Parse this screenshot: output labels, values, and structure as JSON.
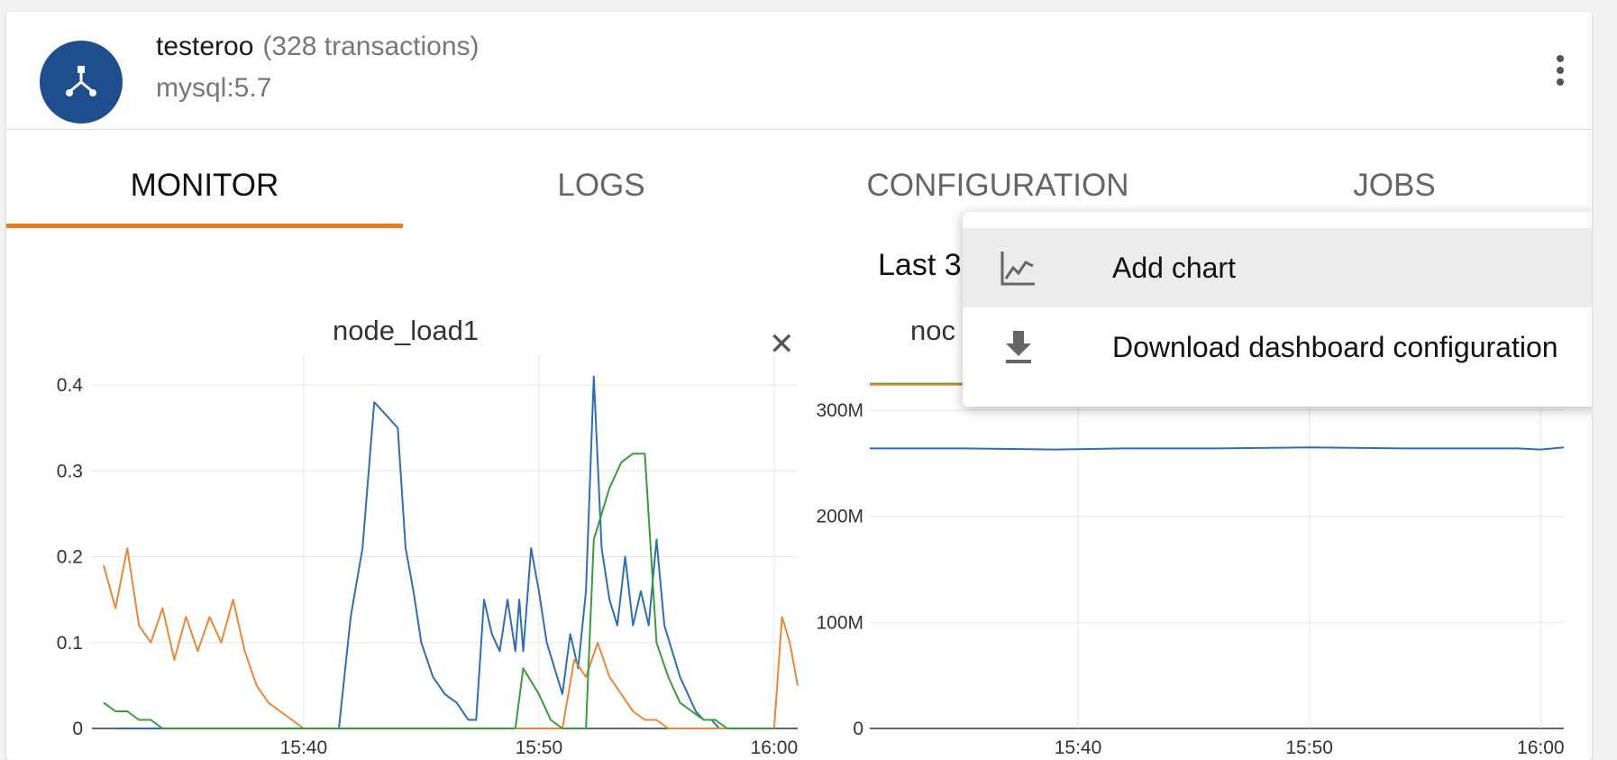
{
  "app": {
    "name": "testeroo",
    "transactions": "(328 transactions)",
    "subtitle": "mysql:5.7",
    "avatar_icon": "fork-icon",
    "accent_color": "#e67b20",
    "avatar_color": "#1f4e8f"
  },
  "tabs": [
    {
      "label": "MONITOR",
      "active": true
    },
    {
      "label": "LOGS",
      "active": false
    },
    {
      "label": "CONFIGURATION",
      "active": false
    },
    {
      "label": "JOBS",
      "active": false
    }
  ],
  "range_label": "Last 3",
  "menu": {
    "items": [
      {
        "label": "Add chart",
        "icon": "chart-icon",
        "highlighted": true
      },
      {
        "label": "Download dashboard configuration",
        "icon": "download-icon",
        "highlighted": false
      }
    ]
  },
  "chart_data": [
    {
      "type": "line",
      "title": "node_load1",
      "xticks": [
        "15:40",
        "15:50",
        "16:00"
      ],
      "ylim": [
        0,
        0.42
      ],
      "yticks": [
        "0",
        "0.1",
        "0.2",
        "0.3",
        "0.4"
      ],
      "grid": true,
      "series": [
        {
          "color": "#2f6faf",
          "x": [
            "15:32",
            "15:33",
            "15:34",
            "15:35",
            "15:36",
            "15:37",
            "15:38",
            "15:39",
            "15:40",
            "15:41",
            "15:41:30",
            "15:42",
            "15:42:30",
            "15:43",
            "15:43:20",
            "15:43:40",
            "15:44",
            "15:44:20",
            "15:44:40",
            "15:45",
            "15:45:30",
            "15:46",
            "15:46:30",
            "15:47",
            "15:47:20",
            "15:47:40",
            "15:48",
            "15:48:20",
            "15:48:40",
            "15:49",
            "15:49:10",
            "15:49:20",
            "15:49:30",
            "15:49:40",
            "15:50",
            "15:50:20",
            "15:50:40",
            "15:51",
            "15:51:20",
            "15:51:40",
            "15:52",
            "15:52:20",
            "15:52:40",
            "15:53",
            "15:53:20",
            "15:53:40",
            "15:54",
            "15:54:20",
            "15:54:40",
            "15:55",
            "15:55:20",
            "15:55:40",
            "15:56",
            "15:56:20",
            "15:56:40",
            "15:57",
            "15:57:20",
            "15:57:40",
            "15:58",
            "15:58:20",
            "15:58:40",
            "15:59",
            "15:59:20",
            "15:59:40",
            "16:00"
          ],
          "y": [
            0,
            0,
            0,
            0,
            0,
            0,
            0,
            0,
            0,
            0,
            0,
            0.13,
            0.21,
            0.38,
            0.37,
            0.36,
            0.35,
            0.21,
            0.16,
            0.1,
            0.06,
            0.04,
            0.03,
            0.01,
            0.01,
            0.15,
            0.11,
            0.09,
            0.15,
            0.09,
            0.15,
            0.09,
            0.15,
            0.21,
            0.16,
            0.1,
            0.07,
            0.04,
            0.11,
            0.07,
            0.16,
            0.41,
            0.21,
            0.15,
            0.12,
            0.2,
            0.12,
            0.16,
            0.12,
            0.22,
            0.12,
            0.09,
            0.06,
            0.04,
            0.02,
            0.01,
            0.01,
            0,
            0,
            0,
            0,
            0,
            0,
            0,
            0
          ]
        },
        {
          "color": "#e8883a",
          "x": [
            "15:31:30",
            "15:32",
            "15:32:30",
            "15:33",
            "15:33:30",
            "15:34",
            "15:34:30",
            "15:35",
            "15:35:30",
            "15:36",
            "15:36:30",
            "15:37",
            "15:37:30",
            "15:38",
            "15:38:30",
            "15:39",
            "15:39:30",
            "15:40",
            "15:51",
            "15:51:30",
            "15:52",
            "15:52:30",
            "15:53",
            "15:53:30",
            "15:54",
            "15:54:30",
            "15:55",
            "15:55:30",
            "15:56",
            "15:56:30",
            "16:00",
            "16:00:20",
            "16:00:40",
            "16:01"
          ],
          "y": [
            0.19,
            0.14,
            0.21,
            0.12,
            0.1,
            0.14,
            0.08,
            0.13,
            0.09,
            0.13,
            0.1,
            0.15,
            0.09,
            0.05,
            0.03,
            0.02,
            0.01,
            0,
            0,
            0.08,
            0.06,
            0.1,
            0.06,
            0.04,
            0.02,
            0.01,
            0.01,
            0,
            0,
            0,
            0,
            0.13,
            0.1,
            0.05
          ]
        },
        {
          "color": "#3c9c3c",
          "x": [
            "15:31:30",
            "15:32",
            "15:32:30",
            "15:33",
            "15:33:30",
            "15:34",
            "15:35",
            "15:49",
            "15:49:20",
            "15:50",
            "15:50:30",
            "15:51",
            "15:51:30",
            "15:52",
            "15:52:20",
            "15:52:40",
            "15:53",
            "15:53:30",
            "15:54",
            "15:54:30",
            "15:55",
            "15:55:30",
            "15:56",
            "15:56:30",
            "15:57",
            "15:57:30",
            "15:58",
            "15:58:30",
            "15:59",
            "16:00"
          ],
          "y": [
            0.03,
            0.02,
            0.02,
            0.01,
            0.01,
            0,
            0,
            0,
            0.07,
            0.04,
            0.01,
            0,
            0,
            0,
            0.22,
            0.25,
            0.28,
            0.31,
            0.32,
            0.32,
            0.1,
            0.06,
            0.03,
            0.02,
            0.01,
            0.01,
            0,
            0,
            0,
            0
          ]
        }
      ]
    },
    {
      "type": "line",
      "title": "noc",
      "xticks": [
        "15:40",
        "15:50",
        "16:00"
      ],
      "ylim": [
        0,
        340000000
      ],
      "yticks": [
        "0",
        "100M",
        "200M",
        "300M"
      ],
      "grid": true,
      "series": [
        {
          "color": "#2f6faf",
          "x": [
            "15:31",
            "15:35",
            "15:39",
            "15:42",
            "15:46",
            "15:50",
            "15:54",
            "15:59",
            "16:00",
            "16:01"
          ],
          "y": [
            264000000,
            264000000,
            263000000,
            264000000,
            264000000,
            265000000,
            264000000,
            264000000,
            263000000,
            265000000
          ]
        },
        {
          "color": "#3c9c3c",
          "x": [
            "15:31",
            "15:35"
          ],
          "y": [
            325000000,
            325000000
          ]
        },
        {
          "color": "#e8883a",
          "x": [
            "15:31",
            "15:35"
          ],
          "y": [
            324000000,
            324000000
          ]
        }
      ]
    }
  ]
}
